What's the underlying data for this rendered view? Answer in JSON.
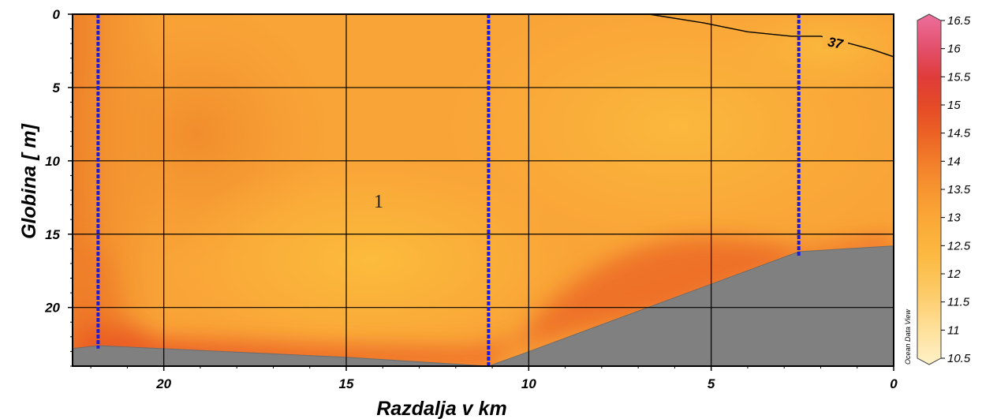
{
  "chart_data": {
    "type": "heatmap",
    "title": "",
    "xlabel": "Razdalja v km",
    "ylabel": "Globina  [ m]",
    "xlim": [
      22.5,
      0
    ],
    "ylim": [
      0,
      24
    ],
    "x_ticks": [
      20,
      15,
      10,
      5,
      0
    ],
    "y_ticks": [
      0,
      5,
      10,
      15,
      20
    ],
    "grid": true,
    "stations_km": [
      21.8,
      11.1,
      2.6
    ],
    "station_depths_m": [
      22.8,
      24,
      16.5
    ],
    "bottom_profile": {
      "x": [
        22.5,
        21.8,
        15,
        11.1,
        10.1,
        2.6,
        0
      ],
      "y": [
        22.8,
        22.6,
        23.4,
        24,
        23.1,
        16.2,
        15.8
      ]
    },
    "contour_lines": [
      {
        "label": "37",
        "x": [
          6.7,
          5.2,
          4.0,
          2.8,
          2.0,
          1.2,
          0.6,
          0
        ],
        "y": [
          0,
          0.6,
          1.2,
          1.5,
          1.5,
          2.0,
          2.4,
          2.9
        ]
      }
    ],
    "colorbar": {
      "ticks": [
        "10.5",
        "11",
        "11.5",
        "12",
        "12.5",
        "13",
        "13.5",
        "14",
        "14.5",
        "15",
        "15.5",
        "16",
        "16.5"
      ],
      "range": [
        10.5,
        16.5
      ]
    },
    "annotation": "1",
    "watermark": "Ocean Data View"
  }
}
